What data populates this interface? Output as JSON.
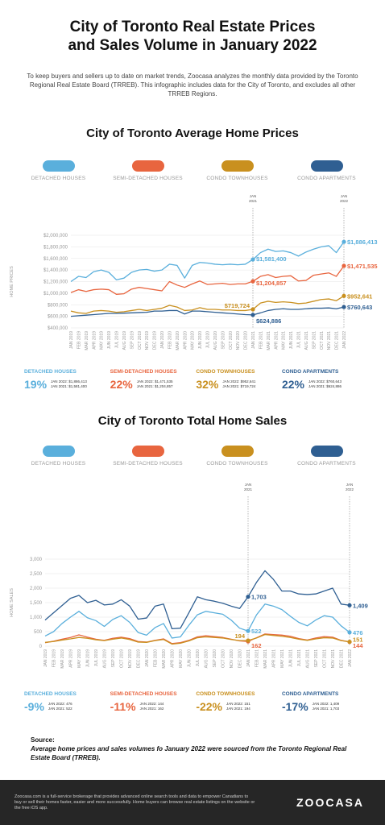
{
  "title": [
    "City of Toronto Real Estate Prices",
    "and Sales Volume in January 2022"
  ],
  "intro": "To keep buyers and sellers up to date on market trends, Zoocasa analyzes the monthly data provided by the Toronto Regional Real Estate Board (TRREB). This infographic includes data for the City of Toronto, and excludes all other TRREB Regions.",
  "legend": {
    "items": [
      {
        "label": "DETACHED HOUSES",
        "color": "#5aafdc"
      },
      {
        "label": "SEMI-DETACHED HOUSES",
        "color": "#e8653f"
      },
      {
        "label": "CONDO TOWNHOUSES",
        "color": "#c9901f"
      },
      {
        "label": "CONDO APARTMENTS",
        "color": "#2f5f92"
      }
    ]
  },
  "months": [
    "JAN 2019",
    "FEB 2019",
    "MAR 2019",
    "APR 2019",
    "MAY 2019",
    "JUN 2019",
    "JUL 2019",
    "AUG 2019",
    "SEP 2019",
    "OCT 2019",
    "NOV 2019",
    "DEC 2019",
    "JAN 2020",
    "FEB 2020",
    "MAR 2020",
    "APR 2020",
    "MAY 2020",
    "JUN 2020",
    "JUL 2020",
    "AUG 2020",
    "SEP 2020",
    "OCT 2020",
    "NOV 2020",
    "DEC 2020",
    "JAN 2021",
    "FEB 2021",
    "MAR 2021",
    "APR 2021",
    "MAY 2021",
    "JUN 2021",
    "JUL 2021",
    "AUG 2021",
    "SEP 2021",
    "OCT 2021",
    "NOV 2021",
    "DEC 2021",
    "JAN 2022"
  ],
  "markers": {
    "jan2021": [
      "JAN",
      "2021"
    ],
    "jan2022": [
      "JAN",
      "2022"
    ]
  },
  "price_section": {
    "title": "City of Toronto Average Home Prices",
    "ylabel": "HOME PRICES",
    "callouts": {
      "detached_2021": "$1,581,400",
      "detached_2022": "$1,886,413",
      "semi_2021": "$1,204,857",
      "semi_2022": "$1,471,535",
      "town_2021": "$719,724",
      "town_2022": "$952,641",
      "apt_2021": "$624,886",
      "apt_2022": "$760,643"
    },
    "stats": [
      {
        "title": "DETACHED HOUSES",
        "pct": "19%",
        "line1": "JAN 2022:  $1,886,413",
        "line2": "JAN 2021:  $1,581,400",
        "color": "#5aafdc"
      },
      {
        "title": "SEMI-DETACHED HOUSES",
        "pct": "22%",
        "line1": "JAN 2022:  $1,471,535",
        "line2": "JAN 2021:  $1,204,857",
        "color": "#e8653f"
      },
      {
        "title": "CONDO TOWNHOUSES",
        "pct": "32%",
        "line1": "JAN 2022:  $952,641",
        "line2": "JAN 2021:  $719,724",
        "color": "#c9901f"
      },
      {
        "title": "CONDO APARTMENTS",
        "pct": "22%",
        "line1": "JAN 2022:  $760,643",
        "line2": "JAN 2021:  $624,886",
        "color": "#2f5f92"
      }
    ]
  },
  "sales_section": {
    "title": "City of Toronto Total Home Sales",
    "ylabel": "HOME SALES",
    "callouts": {
      "detached_2021": "522",
      "detached_2022": "476",
      "semi_2021": "162",
      "semi_2022": "144",
      "town_2021": "194",
      "town_2022": "151",
      "apt_2021": "1,703",
      "apt_2022": "1,409"
    },
    "stats": [
      {
        "title": "DETACHED HOUSES",
        "pct": "-9%",
        "line1": "JAN 2022:  476",
        "line2": "JAN 2021:  522",
        "color": "#5aafdc"
      },
      {
        "title": "SEMI-DETACHED HOUSES",
        "pct": "-11%",
        "line1": "JAN 2022:  144",
        "line2": "JAN 2021:  162",
        "color": "#e8653f"
      },
      {
        "title": "CONDO TOWNHOUSES",
        "pct": "-22%",
        "line1": "JAN 2022:  151",
        "line2": "JAN 2021:  194",
        "color": "#c9901f"
      },
      {
        "title": "CONDO APARTMENTS",
        "pct": "-17%",
        "line1": "JAN 2022:  1,409",
        "line2": "JAN 2021:  1,703",
        "color": "#2f5f92"
      }
    ]
  },
  "chart_data": [
    {
      "type": "line",
      "ylabel": "HOME PRICES",
      "ylim": [
        400000,
        2000000
      ],
      "yticks": [
        "$400,000",
        "$600,000",
        "$800,000",
        "$1,000,000",
        "$1,200,000",
        "$1,400,000",
        "$1,600,000",
        "$1,800,000",
        "$2,000,000"
      ],
      "series": [
        {
          "name": "DETACHED HOUSES",
          "color": "#5aafdc",
          "values": [
            1200000,
            1290000,
            1270000,
            1370000,
            1400000,
            1360000,
            1230000,
            1260000,
            1360000,
            1400000,
            1410000,
            1380000,
            1400000,
            1500000,
            1480000,
            1260000,
            1480000,
            1530000,
            1520000,
            1500000,
            1490000,
            1500000,
            1490000,
            1500000,
            1581400,
            1700000,
            1760000,
            1720000,
            1730000,
            1700000,
            1640000,
            1710000,
            1760000,
            1800000,
            1820000,
            1700000,
            1886413
          ]
        },
        {
          "name": "SEMI-DETACHED HOUSES",
          "color": "#e8653f",
          "values": [
            1010000,
            1060000,
            1030000,
            1060000,
            1070000,
            1060000,
            980000,
            990000,
            1070000,
            1100000,
            1080000,
            1060000,
            1040000,
            1200000,
            1140000,
            1100000,
            1160000,
            1210000,
            1150000,
            1160000,
            1170000,
            1150000,
            1160000,
            1160000,
            1204857,
            1290000,
            1320000,
            1270000,
            1290000,
            1300000,
            1210000,
            1220000,
            1310000,
            1330000,
            1350000,
            1290000,
            1471535
          ]
        },
        {
          "name": "CONDO TOWNHOUSES",
          "color": "#c9901f",
          "values": [
            690000,
            660000,
            650000,
            690000,
            700000,
            690000,
            670000,
            680000,
            700000,
            720000,
            700000,
            720000,
            740000,
            790000,
            760000,
            700000,
            710000,
            750000,
            720000,
            720000,
            710000,
            710000,
            700000,
            700000,
            719724,
            830000,
            860000,
            840000,
            850000,
            840000,
            820000,
            830000,
            860000,
            890000,
            900000,
            870000,
            952641
          ]
        },
        {
          "name": "CONDO APARTMENTS",
          "color": "#2f5f92",
          "values": [
            600000,
            610000,
            620000,
            630000,
            640000,
            650000,
            650000,
            655000,
            660000,
            665000,
            670000,
            690000,
            690000,
            700000,
            700000,
            640000,
            690000,
            690000,
            680000,
            670000,
            660000,
            650000,
            640000,
            630000,
            624886,
            660000,
            700000,
            720000,
            730000,
            720000,
            720000,
            730000,
            740000,
            740000,
            745000,
            730000,
            760643
          ]
        }
      ]
    },
    {
      "type": "line",
      "ylabel": "HOME SALES",
      "ylim": [
        0,
        3000
      ],
      "yticks": [
        "0",
        "500",
        "1,000",
        "1,500",
        "2,000",
        "2,500",
        "3,000"
      ],
      "series": [
        {
          "name": "DETACHED HOUSES",
          "color": "#5aafdc",
          "values": [
            350,
            500,
            780,
            1000,
            1200,
            980,
            880,
            680,
            920,
            1050,
            820,
            470,
            380,
            640,
            780,
            280,
            320,
            720,
            1080,
            1200,
            1150,
            1100,
            900,
            620,
            522,
            1080,
            1450,
            1380,
            1260,
            1030,
            820,
            700,
            900,
            1050,
            1000,
            700,
            476
          ]
        },
        {
          "name": "SEMI-DETACHED HOUSES",
          "color": "#e8653f",
          "values": [
            120,
            170,
            240,
            300,
            390,
            310,
            240,
            200,
            270,
            310,
            260,
            160,
            140,
            200,
            250,
            90,
            120,
            200,
            320,
            360,
            330,
            300,
            240,
            180,
            162,
            290,
            420,
            400,
            380,
            340,
            260,
            210,
            280,
            330,
            310,
            200,
            144
          ]
        },
        {
          "name": "CONDO TOWNHOUSES",
          "color": "#c9901f",
          "values": [
            130,
            160,
            210,
            250,
            300,
            270,
            220,
            190,
            240,
            280,
            230,
            140,
            130,
            190,
            230,
            70,
            100,
            180,
            290,
            320,
            300,
            280,
            230,
            190,
            194,
            280,
            400,
            370,
            340,
            300,
            240,
            200,
            250,
            290,
            280,
            190,
            151
          ]
        },
        {
          "name": "CONDO APARTMENTS",
          "color": "#2f5f92",
          "values": [
            900,
            1150,
            1400,
            1650,
            1750,
            1500,
            1580,
            1420,
            1450,
            1600,
            1380,
            930,
            970,
            1380,
            1450,
            600,
            620,
            1150,
            1700,
            1600,
            1550,
            1480,
            1380,
            1300,
            1703,
            2200,
            2600,
            2300,
            1900,
            1900,
            1800,
            1780,
            1800,
            1900,
            2000,
            1450,
            1409
          ]
        }
      ]
    }
  ],
  "source": {
    "heading": "Source:",
    "text": "Average home prices and sales volumes fo January 2022 were sourced from the Toronto Regional Real Estate Board (TRREB)."
  },
  "footer": {
    "text": "Zoocasa.com is a full-service brokerage that provides advanced online search tools and data to empower Canadians to buy or sell their homes faster, easier and more successfully. Home buyers can browse real estate listings on the website or the free iOS app.",
    "logo": "ZOOCASA"
  }
}
